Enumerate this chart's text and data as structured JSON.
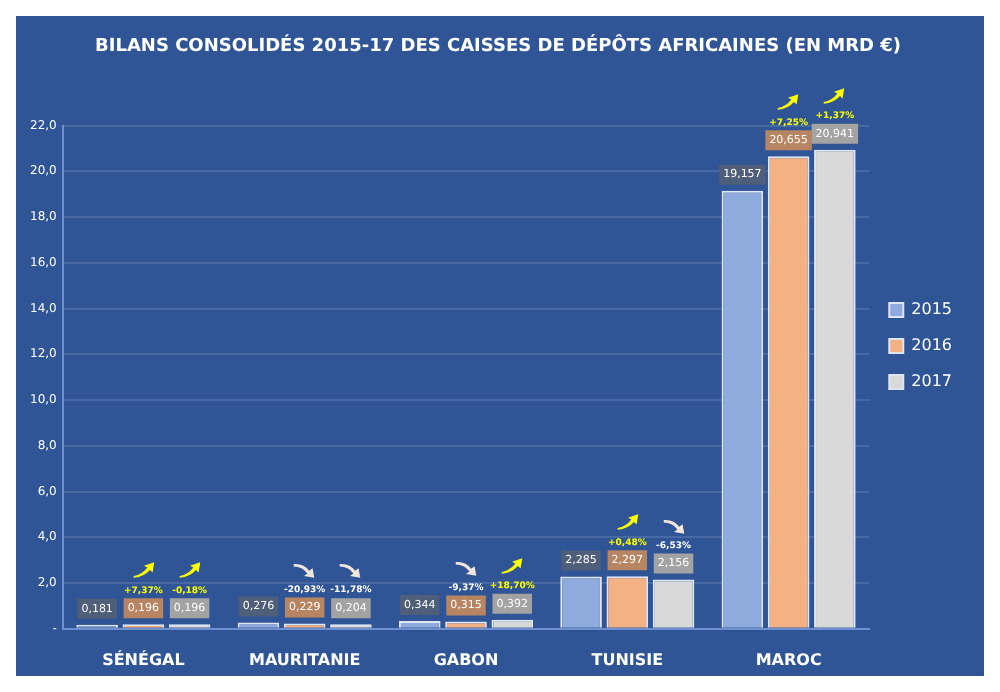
{
  "chart_data": {
    "type": "bar",
    "title": "BILANS CONSOLIDÉS 2015-17 DES CAISSES DE DÉPÔTS AFRICAINES (EN MRD €)",
    "categories": [
      "SÉNÉGAL",
      "MAURITANIE",
      "GABON",
      "TUNISIE",
      "MAROC"
    ],
    "series": [
      {
        "name": "2015",
        "color": "#8faadc",
        "values": [
          0.181,
          0.276,
          0.344,
          2.285,
          19.157
        ],
        "value_labels": [
          "0,181",
          "0,276",
          "0,344",
          "2,285",
          "19,157"
        ]
      },
      {
        "name": "2016",
        "color": "#f4b183",
        "values": [
          0.196,
          0.229,
          0.315,
          2.297,
          20.655
        ],
        "value_labels": [
          "0,196",
          "0,229",
          "0,315",
          "2,297",
          "20,655"
        ]
      },
      {
        "name": "2017",
        "color": "#d9d9d9",
        "values": [
          0.196,
          0.204,
          0.392,
          2.156,
          20.941
        ],
        "value_labels": [
          "0,196",
          "0,204",
          "0,392",
          "2,156",
          "20,941"
        ]
      }
    ],
    "ylim": [
      0,
      22
    ],
    "yticks": [
      {
        "value": 0,
        "label": "-"
      },
      {
        "value": 2,
        "label": "2,0"
      },
      {
        "value": 4,
        "label": "4,0"
      },
      {
        "value": 6,
        "label": "6,0"
      },
      {
        "value": 8,
        "label": "8,0"
      },
      {
        "value": 10,
        "label": "10,0"
      },
      {
        "value": 12,
        "label": "12,0"
      },
      {
        "value": 14,
        "label": "14,0"
      },
      {
        "value": 16,
        "label": "16,0"
      },
      {
        "value": 18,
        "label": "18,0"
      },
      {
        "value": 20,
        "label": "20,0"
      },
      {
        "value": 22,
        "label": "22,0"
      }
    ],
    "grid": "y",
    "legend": "right",
    "annotations": [
      "+7,37%",
      "-0,18%",
      "-20,93%",
      "-11,78%",
      "-9,37%",
      "+18,70%",
      "+0,48%",
      "-6,53%",
      "+7,25%",
      "+1,37%"
    ]
  }
}
